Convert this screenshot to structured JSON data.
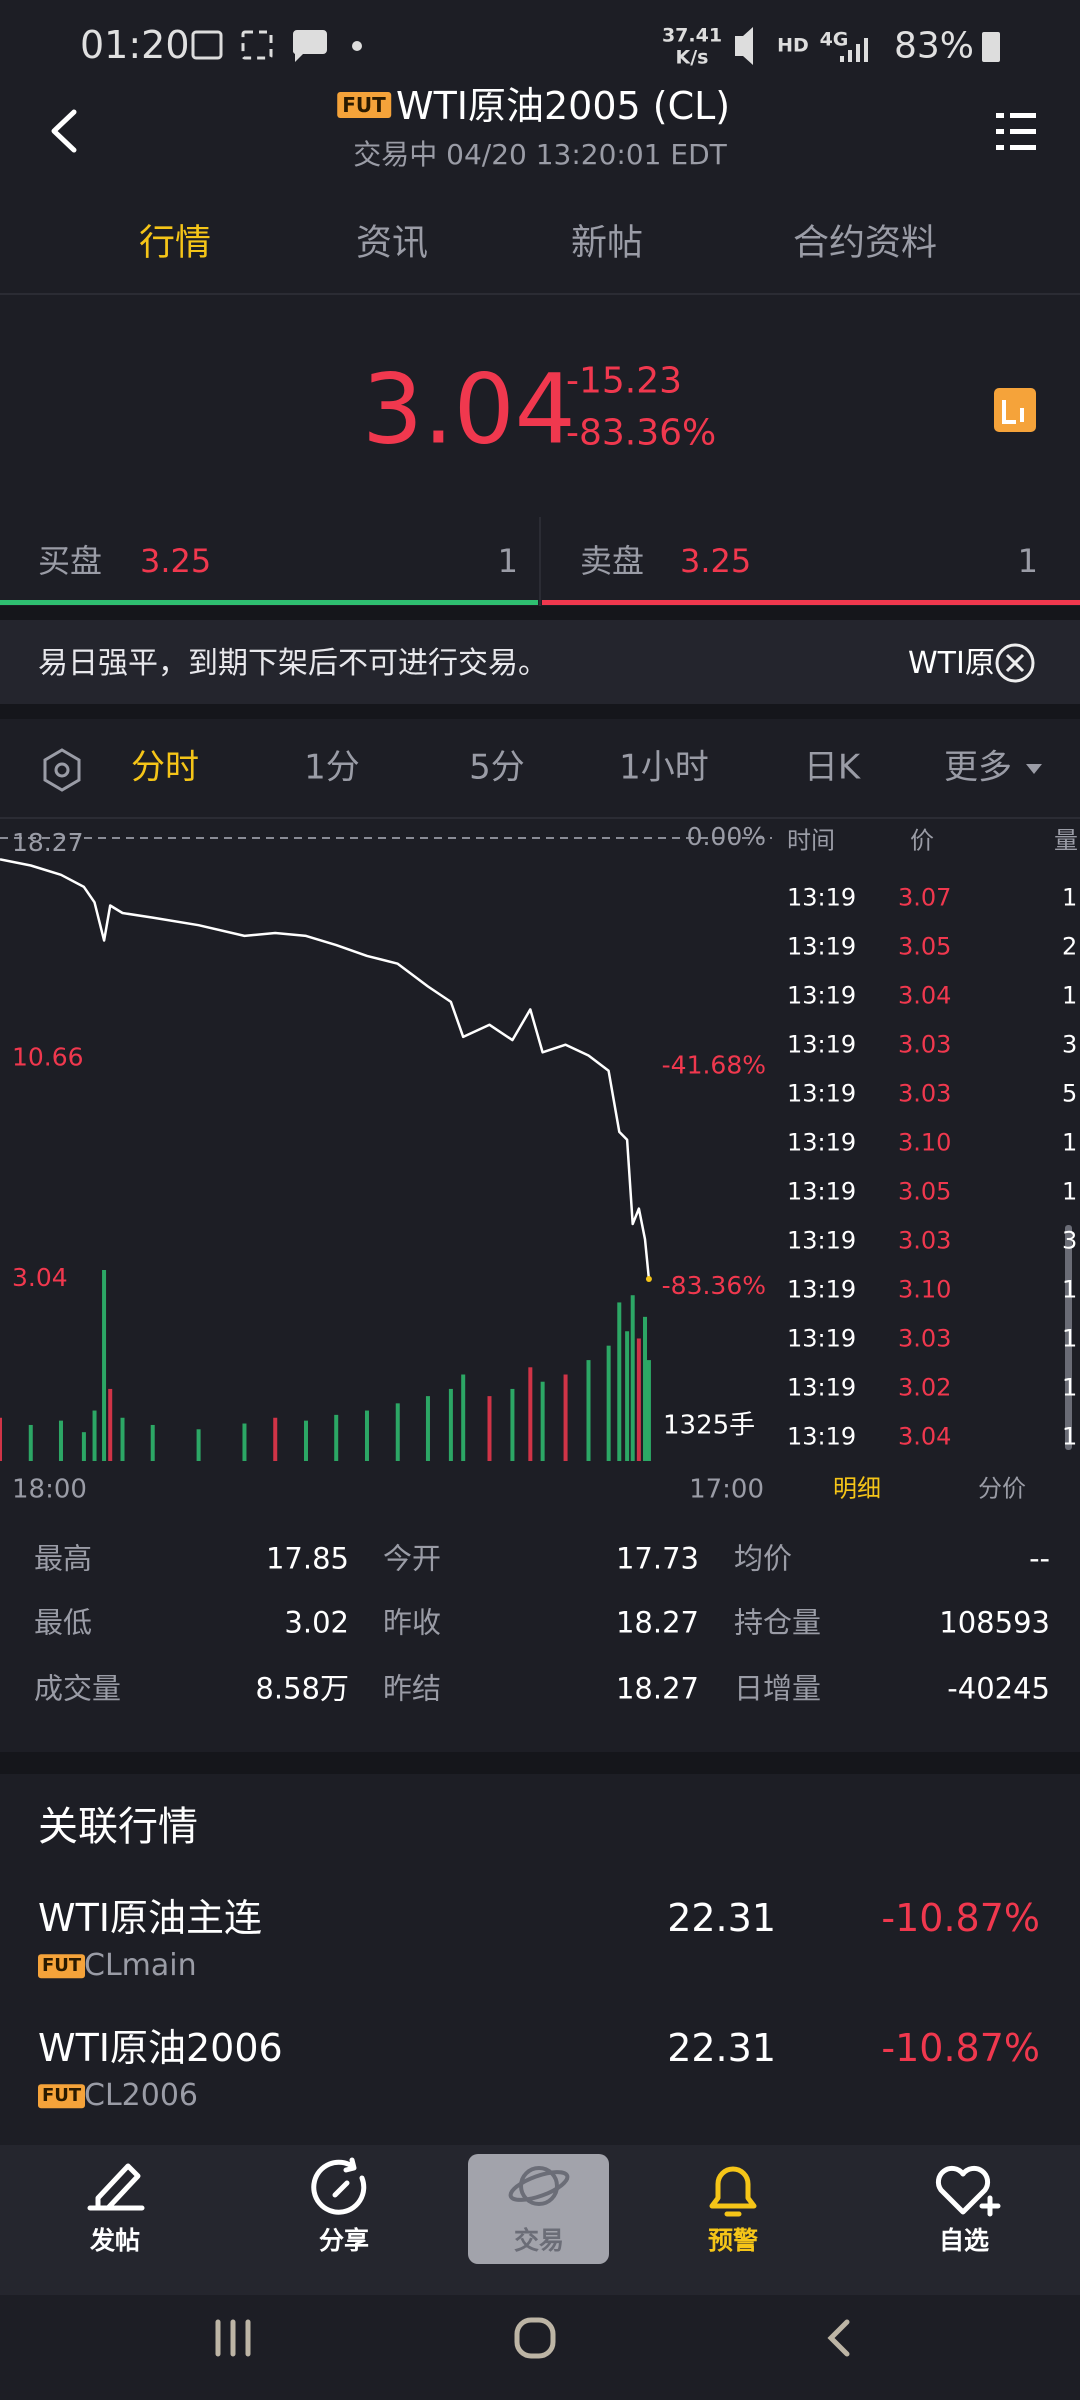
{
  "status_bar": {
    "time": "01:20",
    "net_speed": "37.41",
    "net_speed_unit": "K/s",
    "hd": "HD",
    "network": "4G",
    "battery": "83%"
  },
  "header": {
    "badge": "FUT",
    "title": "WTI原油2005 (CL)",
    "subtitle": "交易中 04/20 13:20:01 EDT"
  },
  "tabs": [
    "行情",
    "资讯",
    "新帖",
    "合约资料"
  ],
  "quote": {
    "price": "3.04",
    "change": "-15.23",
    "change_pct": "-83.36%"
  },
  "bid": {
    "label": "买盘",
    "price": "3.25",
    "size": "1"
  },
  "ask": {
    "label": "卖盘",
    "price": "3.25",
    "size": "1"
  },
  "notice": {
    "text": "易日强平，到期下架后不可进行交易。",
    "link": "WTI原"
  },
  "periods": [
    "分时",
    "1分",
    "5分",
    "1小时",
    "日K",
    "更多"
  ],
  "chart_data": {
    "type": "line",
    "x": [
      0,
      55,
      109,
      150,
      169,
      186,
      197,
      219,
      273,
      355,
      437,
      492,
      547,
      601,
      656,
      711,
      765,
      806,
      828,
      875,
      916,
      948,
      970,
      1011,
      1052,
      1088,
      1107,
      1121,
      1131,
      1142,
      1153,
      1160
    ],
    "values": [
      17.53,
      17.32,
      17.0,
      16.58,
      16.05,
      14.73,
      15.94,
      15.68,
      15.52,
      15.26,
      14.89,
      14.99,
      14.89,
      14.57,
      14.2,
      13.93,
      13.14,
      12.61,
      11.4,
      11.82,
      11.29,
      12.35,
      10.87,
      11.13,
      10.76,
      10.23,
      8.12,
      7.85,
      4.94,
      5.47,
      4.41,
      3.04
    ],
    "color": "#ffffff",
    "volume": [
      300,
      250,
      280,
      200,
      350,
      1325,
      500,
      300,
      250,
      220,
      260,
      300,
      280,
      320,
      350,
      400,
      450,
      500,
      600,
      450,
      500,
      650,
      550,
      600,
      700,
      800,
      1100,
      900,
      1150,
      850,
      1000,
      700
    ],
    "volume_ylim": [
      0,
      1325
    ],
    "volume_yticks": [
      {
        "value": 1325,
        "label": "1325手"
      }
    ],
    "xlim": [
      0,
      1380
    ],
    "xticks": [
      {
        "value": 0,
        "label": "18:00"
      },
      {
        "value": 1380,
        "label": "17:00"
      }
    ],
    "ylim": [
      3.04,
      18.27
    ],
    "yticks": [
      18.27,
      10.66,
      3.04
    ],
    "y2lim": [
      -83.36,
      0
    ],
    "y2ticks": [
      {
        "value": 0,
        "label": "0.00%"
      },
      {
        "value": -41.68,
        "label": "-41.68%"
      },
      {
        "value": -83.36,
        "label": "-83.36%"
      }
    ]
  },
  "trades": {
    "headers": [
      "时间",
      "价",
      "量"
    ],
    "rows": [
      [
        "13:19",
        "3.07",
        "1"
      ],
      [
        "13:19",
        "3.05",
        "2"
      ],
      [
        "13:19",
        "3.04",
        "1"
      ],
      [
        "13:19",
        "3.03",
        "3"
      ],
      [
        "13:19",
        "3.03",
        "5"
      ],
      [
        "13:19",
        "3.10",
        "1"
      ],
      [
        "13:19",
        "3.05",
        "1"
      ],
      [
        "13:19",
        "3.03",
        "3"
      ],
      [
        "13:19",
        "3.10",
        "1"
      ],
      [
        "13:19",
        "3.03",
        "1"
      ],
      [
        "13:19",
        "3.02",
        "1"
      ],
      [
        "13:19",
        "3.04",
        "1"
      ]
    ],
    "tabs": [
      "明细",
      "分价"
    ]
  },
  "stats": [
    [
      "最高",
      "17.85",
      "今开",
      "17.73",
      "均价",
      "--"
    ],
    [
      "最低",
      "3.02",
      "昨收",
      "18.27",
      "持仓量",
      "108593"
    ],
    [
      "成交量",
      "8.58万",
      "昨结",
      "18.27",
      "日增量",
      "-40245"
    ]
  ],
  "related": {
    "title": "关联行情",
    "items": [
      {
        "name": "WTI原油主连",
        "badge": "FUT",
        "code": "CLmain",
        "price": "22.31",
        "change_pct": "-10.87%"
      },
      {
        "name": "WTI原油2006",
        "badge": "FUT",
        "code": "CL2006",
        "price": "22.31",
        "change_pct": "-10.87%"
      }
    ]
  },
  "bottom_nav": [
    "发帖",
    "分享",
    "交易",
    "预警",
    "自选"
  ]
}
